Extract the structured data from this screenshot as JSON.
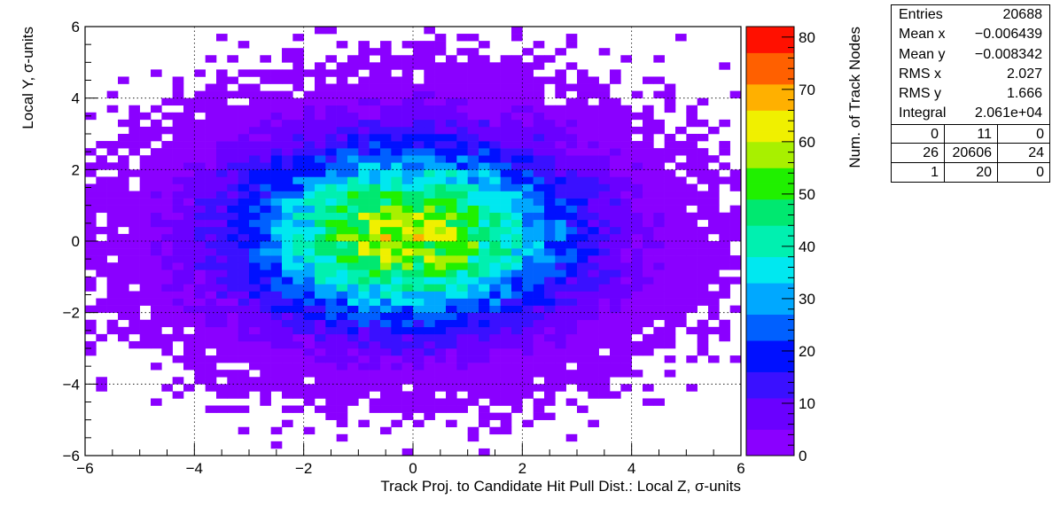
{
  "chart_data": {
    "type": "heatmap",
    "xlabel": "Track Proj. to Candidate Hit Pull Dist.: Local Z, σ-units",
    "ylabel": "Local Y, σ-units",
    "zlabel": "Num. of Track Nodes",
    "xlim": [
      -6,
      6
    ],
    "ylim": [
      -6,
      6
    ],
    "zlim": [
      0,
      82
    ],
    "x_bins": 60,
    "y_bins": 60,
    "x_ticks": [
      {
        "v": -6,
        "t": "−6"
      },
      {
        "v": -4,
        "t": "−4"
      },
      {
        "v": -2,
        "t": "−2"
      },
      {
        "v": 0,
        "t": "0"
      },
      {
        "v": 2,
        "t": "2"
      },
      {
        "v": 4,
        "t": "4"
      },
      {
        "v": 6,
        "t": "6"
      }
    ],
    "y_ticks": [
      {
        "v": -6,
        "t": "−6"
      },
      {
        "v": -4,
        "t": "−4"
      },
      {
        "v": -2,
        "t": "−2"
      },
      {
        "v": 0,
        "t": "0"
      },
      {
        "v": 2,
        "t": "2"
      },
      {
        "v": 4,
        "t": "4"
      },
      {
        "v": 6,
        "t": "6"
      }
    ],
    "z_ticks": [
      {
        "v": 0,
        "t": "0"
      },
      {
        "v": 10,
        "t": "10"
      },
      {
        "v": 20,
        "t": "20"
      },
      {
        "v": 30,
        "t": "30"
      },
      {
        "v": 40,
        "t": "40"
      },
      {
        "v": 50,
        "t": "50"
      },
      {
        "v": 60,
        "t": "60"
      },
      {
        "v": 70,
        "t": "70"
      },
      {
        "v": 80,
        "t": "80"
      }
    ],
    "grid": true,
    "distribution": {
      "peak_count": 82,
      "peak_x": -0.1,
      "peak_y": 0.2,
      "sigma_x": 2.027,
      "sigma_y": 1.666
    },
    "palette": [
      "#8a00ff",
      "#6a00ff",
      "#3a10ff",
      "#0010ff",
      "#0060ff",
      "#00a8ff",
      "#00e8f0",
      "#00f0b0",
      "#00e870",
      "#20f000",
      "#a8f000",
      "#f0f000",
      "#ffb000",
      "#ff6000",
      "#ff1000"
    ]
  },
  "stats": {
    "rows": [
      {
        "label": "Entries",
        "value": "20688"
      },
      {
        "label": "Mean x",
        "value": "−0.006439"
      },
      {
        "label": "Mean y",
        "value": "−0.008342"
      },
      {
        "label": "RMS x",
        "value": "2.027"
      },
      {
        "label": "RMS y",
        "value": "1.666"
      },
      {
        "label": "Integral",
        "value": "2.061e+04"
      }
    ],
    "grid": [
      [
        "0",
        "11",
        "0"
      ],
      [
        "26",
        "20606",
        "24"
      ],
      [
        "1",
        "20",
        "0"
      ]
    ]
  }
}
